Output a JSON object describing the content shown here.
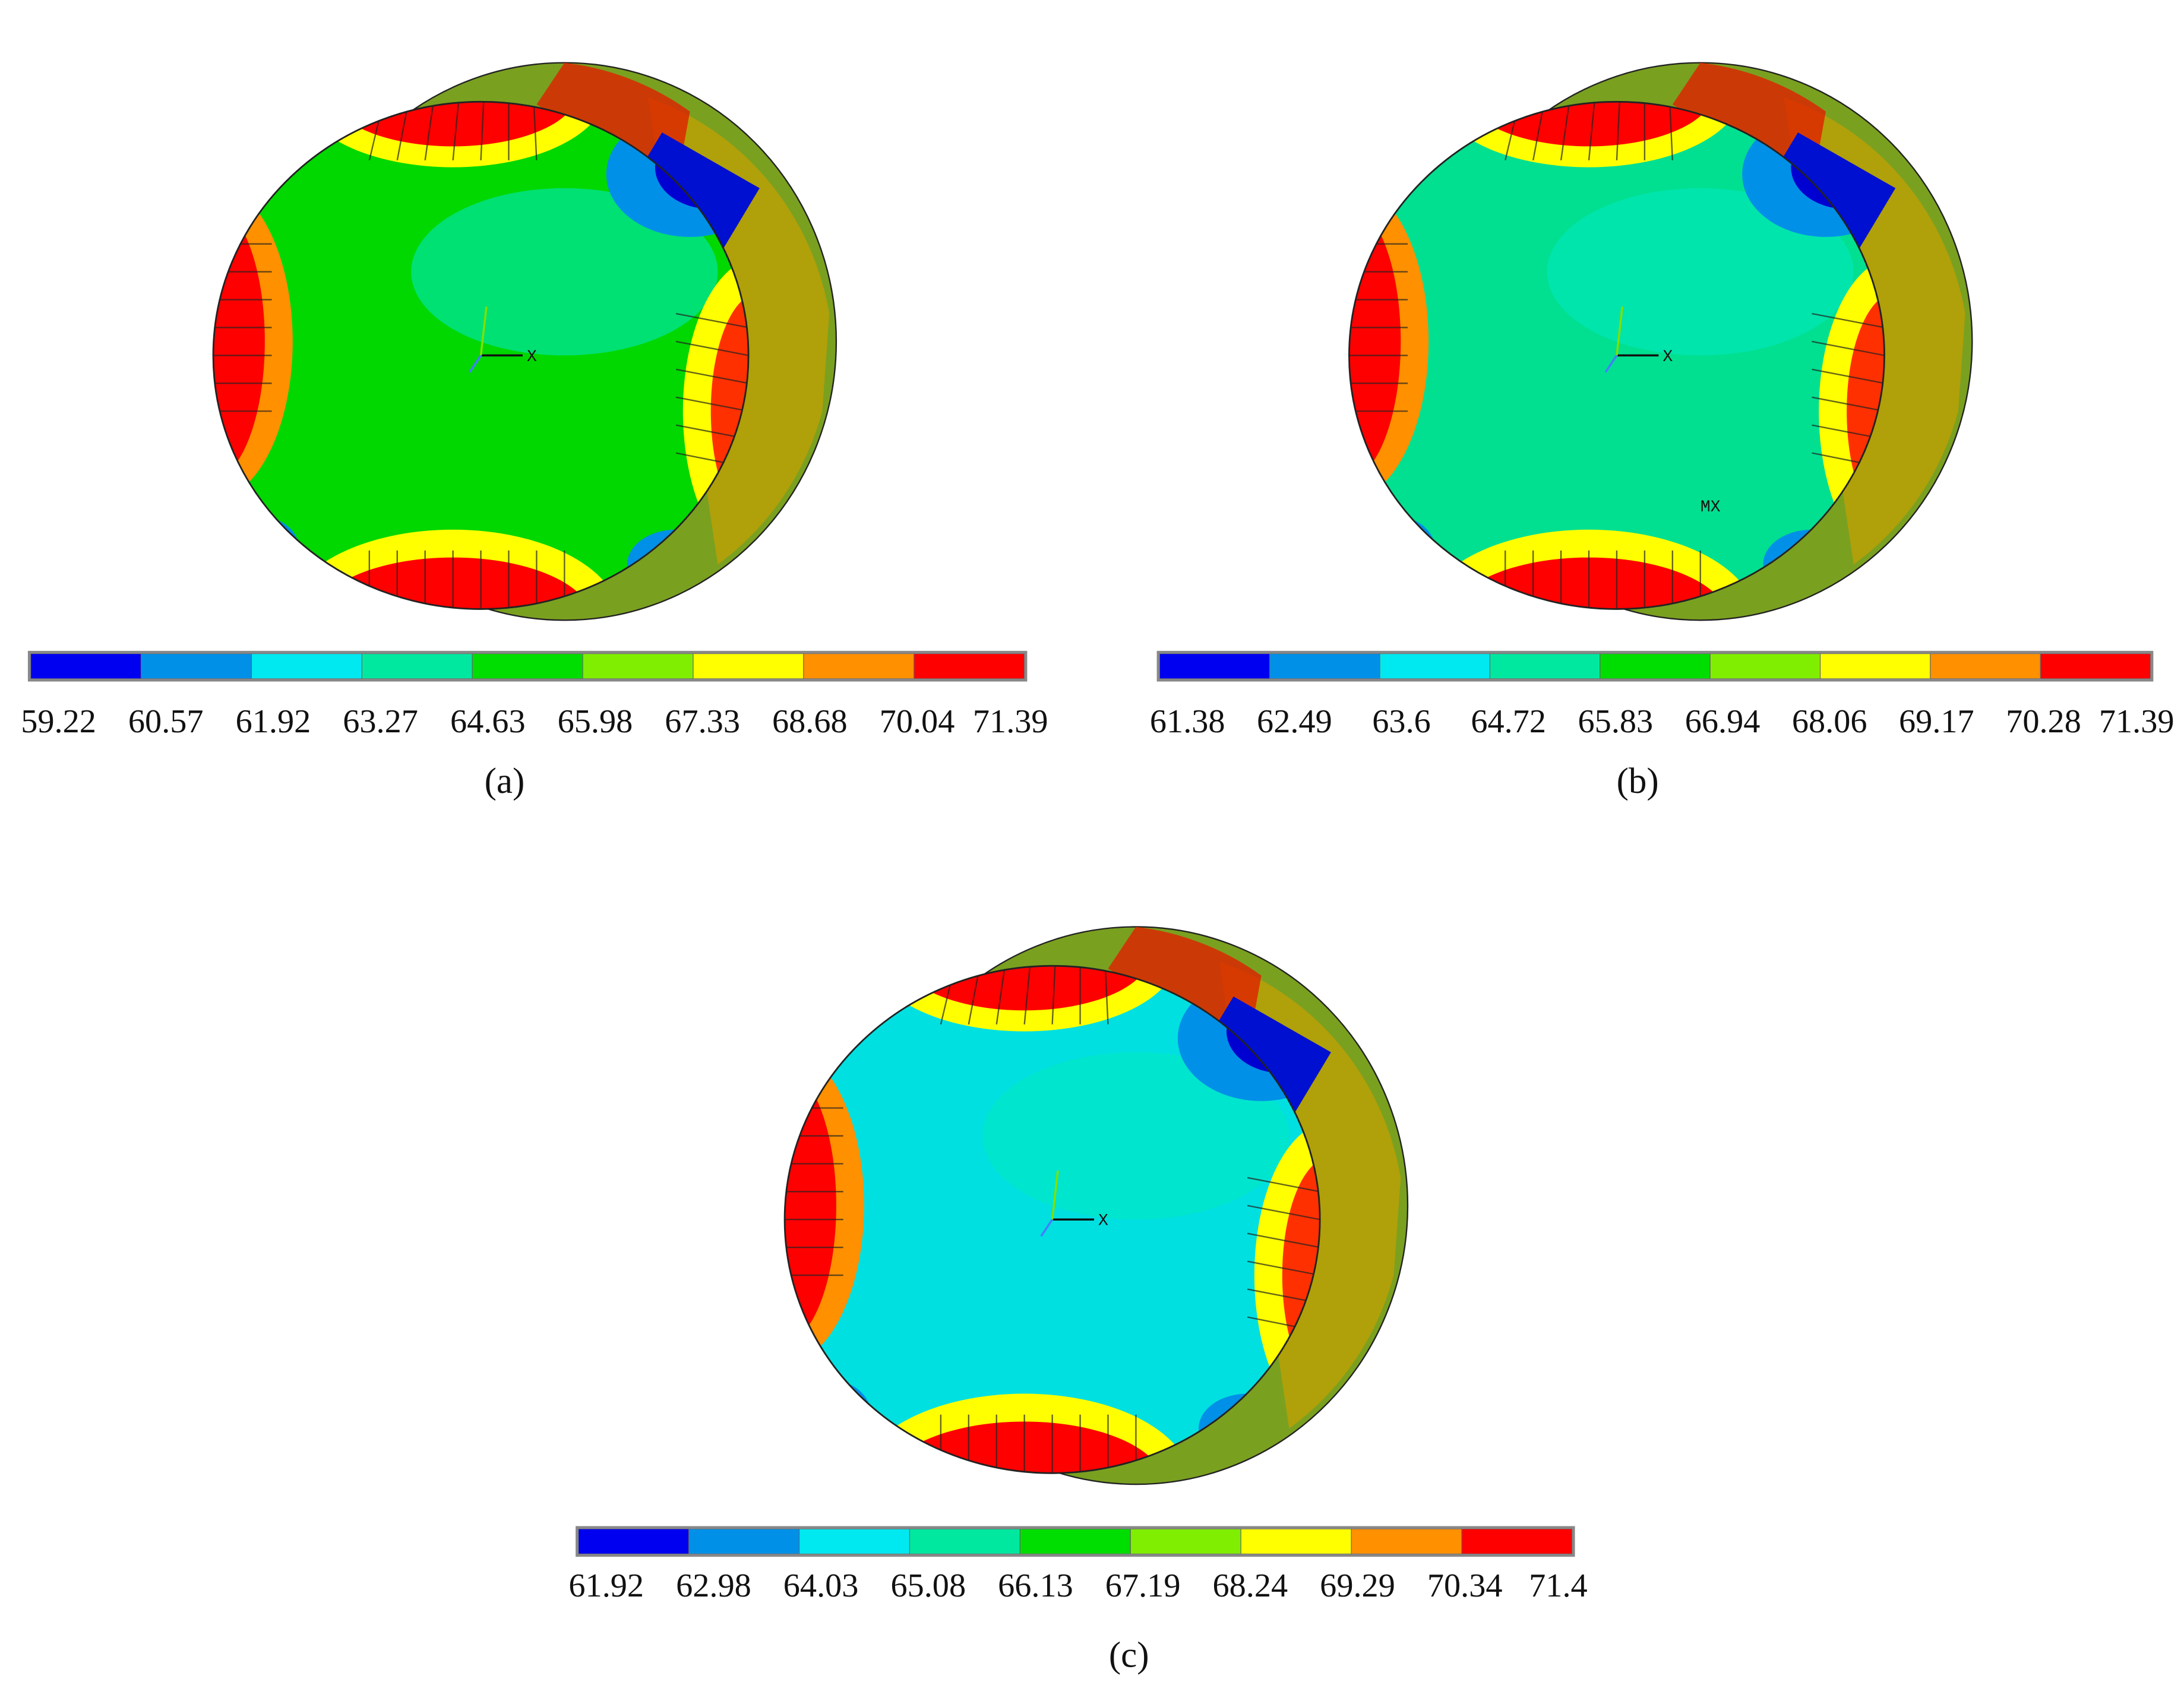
{
  "panels": [
    {
      "label": "(a)",
      "axis_label": "X",
      "colorbar_ticks": [
        59.22,
        60.57,
        61.92,
        63.27,
        64.63,
        65.98,
        67.33,
        68.68,
        70.04,
        71.39
      ]
    },
    {
      "label": "(b)",
      "axis_label": "X",
      "max_label": "MX",
      "colorbar_ticks": [
        61.38,
        62.49,
        63.6,
        64.72,
        65.83,
        66.94,
        68.06,
        69.17,
        70.28,
        71.39
      ]
    },
    {
      "label": "(c)",
      "axis_label": "X",
      "colorbar_ticks": [
        61.92,
        62.98,
        64.03,
        65.08,
        66.13,
        67.19,
        68.24,
        69.29,
        70.34,
        71.4
      ]
    }
  ],
  "colorbar_colors": [
    "#0000f0",
    "#0090e8",
    "#00e8f0",
    "#00e8a0",
    "#00dd00",
    "#80ee00",
    "#ffff00",
    "#ff9000",
    "#ff0000"
  ]
}
